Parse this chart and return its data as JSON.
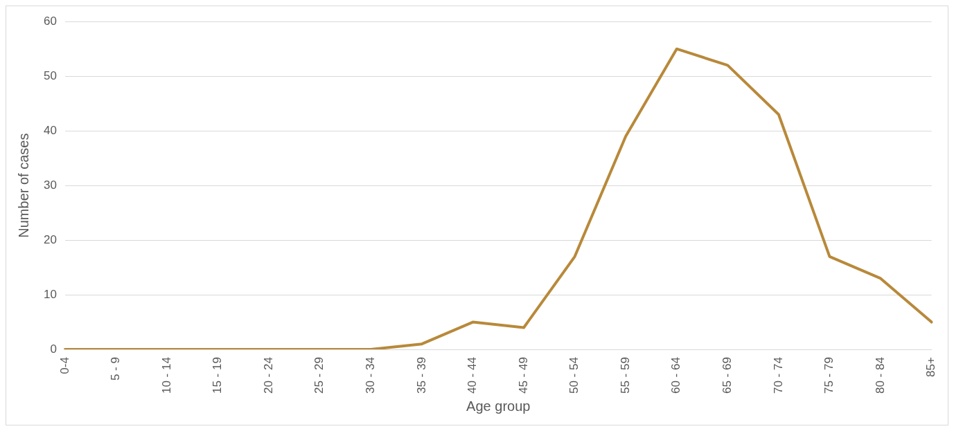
{
  "chart_data": {
    "type": "line",
    "xlabel": "Age group",
    "ylabel": "Number of cases",
    "categories": [
      "0-4",
      "5 - 9",
      "10 - 14",
      "15 - 19",
      "20 - 24",
      "25 - 29",
      "30 - 34",
      "35 - 39",
      "40 - 44",
      "45 - 49",
      "50 - 54",
      "55 - 59",
      "60 - 64",
      "65 - 69",
      "70 - 74",
      "75 - 79",
      "80 - 84",
      "85+"
    ],
    "series": [
      {
        "color": "#b8893a",
        "values": [
          0,
          0,
          0,
          0,
          0,
          0,
          0,
          1,
          5,
          4,
          17,
          39,
          55,
          52,
          43,
          17,
          13,
          5
        ]
      }
    ],
    "ylim": [
      0,
      60
    ],
    "yticks": [
      0,
      10,
      20,
      30,
      40,
      50,
      60
    ],
    "grid": "y",
    "legend": false,
    "marker": "none",
    "line_style": "solid"
  }
}
